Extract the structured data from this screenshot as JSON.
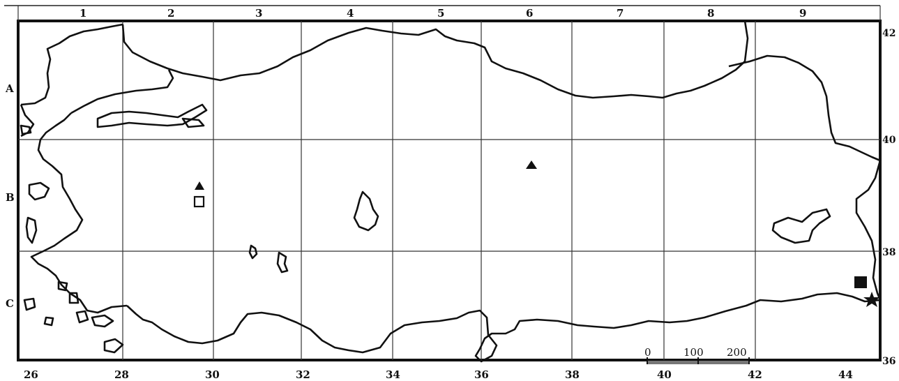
{
  "grid": {
    "column_labels": [
      "1",
      "2",
      "3",
      "4",
      "5",
      "6",
      "7",
      "8",
      "9"
    ],
    "row_labels": [
      "A",
      "B",
      "C"
    ],
    "longitude_labels": [
      "26",
      "28",
      "30",
      "32",
      "34",
      "36",
      "38",
      "40",
      "42",
      "44"
    ],
    "latitude_labels": [
      "42",
      "40",
      "38",
      "36"
    ]
  },
  "scale_bar": {
    "labels": [
      "0",
      "100",
      "200"
    ]
  },
  "markers": [
    {
      "name": "filled-triangle-marker",
      "shape": "triangle",
      "filled": true,
      "grid_square": "B2"
    },
    {
      "name": "open-square-marker",
      "shape": "square",
      "filled": false,
      "grid_square": "B2"
    },
    {
      "name": "filled-triangle-marker",
      "shape": "triangle",
      "filled": true,
      "grid_square": "B6"
    },
    {
      "name": "filled-square-marker",
      "shape": "square",
      "filled": true,
      "grid_square": "C9"
    },
    {
      "name": "filled-star-marker",
      "shape": "star",
      "filled": true,
      "grid_square": "C9"
    }
  ],
  "colors": {
    "land": "#ffffff",
    "outline": "#111111",
    "grid": "#222222",
    "scale_bar": "#777777"
  }
}
